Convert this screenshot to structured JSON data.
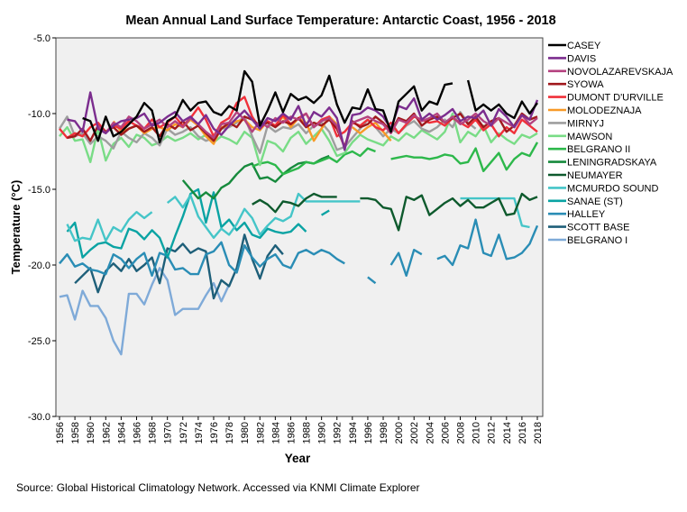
{
  "chart_data": {
    "type": "line",
    "title": "Mean Annual Land Surface Temperature: Antarctic Coast, 1956 - 2018",
    "xlabel": "Year",
    "ylabel": "Temperature (°C)",
    "xlim": [
      1956,
      2018
    ],
    "ylim": [
      -30,
      -5
    ],
    "yticks": [
      -5,
      -10,
      -15,
      -20,
      -25,
      -30
    ],
    "ytick_labels": [
      "-5.0",
      "-10.0",
      "-15.0",
      "-20.0",
      "-25.0",
      "-30.0"
    ],
    "xticks": [
      1956,
      1958,
      1960,
      1962,
      1964,
      1966,
      1968,
      1970,
      1972,
      1974,
      1976,
      1978,
      1980,
      1982,
      1984,
      1986,
      1988,
      1990,
      1992,
      1994,
      1996,
      1998,
      2000,
      2002,
      2004,
      2006,
      2008,
      2010,
      2012,
      2014,
      2016,
      2018
    ],
    "grid": false,
    "legend_position": "right",
    "series": [
      {
        "name": "CASEY",
        "color": "#000000",
        "start": 1959,
        "values": [
          -10.3,
          -10.5,
          -11.8,
          -10.2,
          -11.5,
          -11.2,
          -10.7,
          -10.2,
          -9.3,
          -9.8,
          -11.9,
          -10.5,
          -10.2,
          -9.1,
          -9.8,
          -9.3,
          -9.2,
          -9.9,
          -10.1,
          -9.5,
          -9.8,
          -7.2,
          -7.9,
          -10.8,
          -9.8,
          -8.6,
          -9.9,
          -8.7,
          -9.1,
          -8.9,
          -9.3,
          -8.8,
          -7.5,
          -9.4,
          -10.6,
          -9.6,
          -9.7,
          -8.4,
          -9.7,
          -9.8,
          -11.2,
          -9.2,
          -8.7,
          -8.2,
          -9.8,
          -9.2,
          -9.4,
          -8.1,
          -8.0,
          null,
          -7.8,
          -9.8,
          -9.4,
          -9.8,
          -9.4,
          -10.0,
          -10.3,
          -9.2,
          -10.0,
          -9.3
        ]
      },
      {
        "name": "DAVIS",
        "color": "#7b2d8e",
        "start": 1957,
        "values": [
          -10.4,
          -10.5,
          -11.2,
          -8.6,
          -11.0,
          -11.3,
          -10.8,
          -10.5,
          -10.4,
          -10.3,
          -10.0,
          -10.8,
          -10.6,
          -10.2,
          -9.9,
          -10.5,
          -10.2,
          -10.7,
          -10.1,
          -11.0,
          -11.4,
          -10.8,
          -10.3,
          -9.8,
          -10.4,
          -11.0,
          -10.3,
          -10.5,
          -10.0,
          -10.4,
          -9.5,
          -10.8,
          -9.9,
          -10.2,
          -9.6,
          -10.3,
          -12.4,
          -10.1,
          -10.0,
          -9.6,
          -9.8,
          -10.2,
          -11.0,
          -9.5,
          -9.7,
          -9.0,
          -10.4,
          -10.0,
          -10.4,
          -10.1,
          -9.7,
          -10.5,
          -10.2,
          -10.3,
          -9.8,
          -10.8,
          -9.7,
          -10.2,
          -10.9,
          -10.1,
          -10.4,
          -9.1
        ]
      },
      {
        "name": "NOVOLAZAREVSKAJA",
        "color": "#b5427f",
        "start": 1961,
        "values": [
          -10.8,
          -11.3,
          -10.6,
          -10.9,
          -10.2,
          -10.5,
          -11.0,
          -10.7,
          -10.4,
          -10.9,
          -10.5,
          -10.9,
          -10.3,
          -10.7,
          -11.2,
          -11.6,
          -10.7,
          -10.6,
          -9.9,
          -10.4,
          -11.2,
          -10.5,
          -10.9,
          -10.3,
          -10.6,
          -10.2,
          -10.4,
          -10.0,
          -10.9,
          -10.5,
          -10.3,
          -10.8,
          -12.3,
          -10.6,
          -10.4,
          -10.2,
          -10.5,
          -10.7,
          -11.3,
          -10.4,
          -10.6,
          -10.1,
          -10.5,
          -10.3,
          -10.0,
          -10.6,
          -10.2,
          -10.7,
          -10.4,
          -10.0,
          -10.5,
          -10.8,
          -10.3,
          -10.6,
          -10.9,
          -10.1,
          -10.7,
          -10.3
        ]
      },
      {
        "name": "SYOWA",
        "color": "#a0181c",
        "start": 1957,
        "values": [
          -11.6,
          -11.5,
          -11.0,
          -11.8,
          -10.8,
          -11.2,
          -10.9,
          -11.4,
          -11.0,
          -10.8,
          -11.2,
          -10.9,
          -11.5,
          -10.7,
          -11.0,
          -10.5,
          -11.1,
          -10.8,
          -11.3,
          -11.8,
          -11.0,
          -10.6,
          -10.9,
          -10.2,
          -10.4,
          -10.8,
          -10.6,
          -10.9,
          -10.5,
          -10.7,
          -10.3,
          -10.9,
          -10.6,
          -10.8,
          -10.4,
          -11.0,
          -12.2,
          -10.5,
          -10.9,
          -10.7,
          -10.2,
          -10.6,
          -11.2,
          -10.3,
          -10.5,
          -10.0,
          -10.8,
          -10.4,
          -10.2,
          -10.6,
          -10.3,
          -10.0,
          -10.7,
          -10.2,
          -10.9,
          -10.5,
          -10.3,
          -11.2,
          -10.8,
          -10.0,
          -10.4,
          -10.2
        ]
      },
      {
        "name": "DUMONT D'URVILLE",
        "color": "#f0303a",
        "start": 1956,
        "values": [
          -11.0,
          -11.6,
          -11.3,
          -11.5,
          -10.9,
          -10.6,
          -11.2,
          -10.8,
          -11.0,
          -10.5,
          -10.8,
          -11.0,
          -10.4,
          -10.9,
          -10.6,
          -10.2,
          -10.8,
          -10.3,
          -9.6,
          -10.4,
          -11.5,
          -10.6,
          -10.3,
          -9.3,
          -8.9,
          -10.2,
          -11.0,
          -10.5,
          -10.8,
          -10.1,
          -10.7,
          -10.3,
          -10.0,
          -10.9,
          -10.4,
          -10.2,
          -11.5,
          -11.2,
          -10.6,
          -10.8,
          -10.4,
          -10.9,
          -11.1,
          -10.6,
          -11.3,
          -10.7,
          -10.2,
          -10.4,
          -10.6,
          -10.5,
          -10.8,
          -10.3,
          -10.6,
          -10.9,
          -10.4,
          -11.1,
          -10.7,
          -11.5,
          -10.9,
          -11.3,
          -10.4,
          -10.8,
          -11.2
        ]
      },
      {
        "name": "MOLODEZNAJA",
        "color": "#f89a28",
        "start": 1963,
        "values": [
          -10.5,
          -11.2,
          -11.0,
          -10.8,
          -11.3,
          -11.0,
          -10.9,
          -11.1,
          -10.7,
          -10.9,
          -10.4,
          -10.8,
          -11.5,
          -12.0,
          -10.9,
          -10.8,
          -10.5,
          -10.4,
          -10.9,
          -11.1,
          -10.5,
          -10.8,
          -10.2,
          -10.9,
          -10.3,
          -10.6,
          -11.8,
          -11.0,
          -10.2,
          -10.7,
          null,
          -10.9,
          -11.3,
          -10.9,
          -10.6,
          -11.2,
          -11.8
        ]
      },
      {
        "name": "MIRNYJ",
        "color": "#9e9e9e",
        "start": 1956,
        "values": [
          -11.0,
          -10.2,
          -11.5,
          -11.3,
          -12.0,
          -11.5,
          -11.8,
          -12.3,
          -11.2,
          -11.6,
          -11.9,
          -11.3,
          -11.6,
          -12.1,
          -11.0,
          -11.4,
          -11.2,
          -10.9,
          -11.5,
          -11.8,
          -11.6,
          -11.0,
          -10.9,
          -10.6,
          -10.2,
          -11.5,
          -12.6,
          -10.8,
          -11.2,
          -10.9,
          -11.0,
          -10.7,
          -11.3,
          -10.8,
          -10.6,
          -11.2,
          -12.4,
          -12.2,
          -11.6,
          -11.0,
          -10.4,
          -10.9,
          -11.5,
          -11.0,
          -11.3,
          -10.8,
          -10.5,
          -11.0,
          -11.2,
          -10.9,
          -10.4,
          -10.9,
          -9.9,
          -10.6,
          -11.0
        ]
      },
      {
        "name": "MAWSON",
        "color": "#79dc86",
        "start": 1956,
        "values": [
          -11.5,
          -10.9,
          -11.8,
          -11.7,
          -13.2,
          -11.0,
          -13.1,
          -12.0,
          -11.6,
          -12.2,
          -11.4,
          -11.6,
          -12.1,
          -11.9,
          -11.5,
          -11.8,
          -11.6,
          -11.3,
          -11.7,
          -11.4,
          -11.9,
          -11.5,
          -11.7,
          -12.0,
          -11.2,
          -11.6,
          -13.4,
          -11.8,
          -12.0,
          -12.5,
          -11.6,
          -11.2,
          -12.0,
          -11.5,
          -11.0,
          -11.8,
          -12.8,
          -12.6,
          -11.9,
          -11.4,
          -11.7,
          -11.9,
          -12.1,
          -11.5,
          -11.8,
          -11.3,
          -11.6,
          -11.1,
          -11.4,
          -11.7,
          -11.2,
          -10.0,
          -11.9,
          -11.2,
          -11.5,
          -10.8,
          -11.9,
          -11.3,
          -11.7,
          -12.0,
          -11.4,
          -11.6,
          -11.3
        ]
      },
      {
        "name": "BELGRANO II",
        "color": "#2db84b",
        "start": 1981,
        "values": [
          -13.5,
          -13.3,
          -13.2,
          -13.4,
          -14.0,
          -13.8,
          -13.6,
          -13.2,
          -13.3,
          -13.1,
          -12.9,
          -13.2,
          -12.7,
          -12.5,
          -12.8,
          -12.3,
          -12.5,
          null,
          -13.0,
          -12.9,
          -12.8,
          -12.9,
          -12.9,
          -13.0,
          -12.9,
          -12.7,
          -12.8,
          -13.3,
          -13.2,
          -12.3,
          -13.8,
          -13.2,
          -12.6,
          -13.7,
          -13.0,
          -12.6,
          -12.8,
          -11.9
        ]
      },
      {
        "name": "LENINGRADSKAYA",
        "color": "#178a3d",
        "start": 1972,
        "values": [
          -14.4,
          -15.0,
          -15.6,
          -15.2,
          -15.6,
          -14.9,
          -14.6,
          -14.0,
          -13.5,
          -13.3,
          -14.3,
          -14.2,
          -14.5,
          -14.0,
          -13.6,
          -13.3,
          -13.2,
          -13.3,
          -13.0,
          -12.8
        ]
      },
      {
        "name": "NEUMAYER",
        "color": "#0e5a2d",
        "start": 1981,
        "values": [
          -16.0,
          -15.7,
          -16.0,
          -16.5,
          -15.8,
          -15.9,
          -16.1,
          -15.6,
          -15.3,
          -15.5,
          -15.5,
          -15.5,
          null,
          null,
          -15.6,
          -15.6,
          -15.7,
          -16.2,
          -16.3,
          -17.7,
          -15.5,
          -15.7,
          -15.4,
          -16.7,
          -16.3,
          -15.9,
          -15.6,
          -16.1,
          -15.7,
          -16.2,
          -16.2,
          -15.9,
          -15.6,
          -16.7,
          -16.6,
          -15.3,
          -15.7,
          -15.5
        ]
      },
      {
        "name": "MCMURDO SOUND",
        "color": "#45c5c8",
        "start": 1957,
        "values": [
          -17.3,
          -18.4,
          -18.2,
          -18.3,
          -17.0,
          -18.4,
          -17.5,
          -17.8,
          -17.0,
          -16.5,
          -16.9,
          -16.5,
          null,
          -15.9,
          -15.5,
          -16.2,
          -15.4,
          -16.8,
          -17.5,
          -18.2,
          -17.6,
          -18.0,
          -17.3,
          -16.3,
          -16.9,
          -18.0,
          -17.4,
          -16.9,
          -17.1,
          -16.8,
          -15.3,
          -15.8,
          -15.8,
          -15.8,
          -15.8,
          -15.8,
          -15.8,
          -15.8,
          -15.8,
          null,
          null,
          null,
          null,
          null,
          null,
          null,
          null,
          null,
          null,
          null,
          null,
          -15.6,
          -15.6,
          -15.6,
          -15.6,
          -15.6,
          -15.6,
          -15.6,
          -15.6,
          -17.4,
          -17.5,
          null
        ]
      },
      {
        "name": "SANAE (ST)",
        "color": "#0aa3a3",
        "start": 1957,
        "values": [
          -17.8,
          -17.2,
          -19.5,
          -19.0,
          -18.6,
          -18.5,
          -18.8,
          -18.9,
          -17.6,
          -17.8,
          -18.3,
          -17.7,
          -18.2,
          -19.5,
          -18.1,
          -16.8,
          -15.3,
          -15.0,
          -17.2,
          -15.2,
          -17.5,
          -17.0,
          -17.7,
          -17.2,
          -18.0,
          -18.2,
          -17.6,
          -17.8,
          -17.9,
          -17.8,
          -17.3,
          -17.8,
          null,
          -16.7,
          -16.4
        ]
      },
      {
        "name": "HALLEY",
        "color": "#2a8db5",
        "start": 1956,
        "values": [
          -19.9,
          -19.3,
          -20.1,
          -19.9,
          -20.3,
          -20.4,
          -20.6,
          -19.3,
          -19.6,
          -20.2,
          -19.6,
          -19.2,
          -20.7,
          -19.2,
          -19.4,
          -20.3,
          -20.2,
          -20.6,
          -20.6,
          -19.3,
          -19.1,
          -18.5,
          -20.0,
          -20.5,
          -18.7,
          -19.5,
          -20.1,
          -19.6,
          -19.3,
          -20.0,
          -20.2,
          -19.2,
          -19.0,
          -19.3,
          -19.0,
          -19.2,
          -19.6,
          -19.9,
          null,
          null,
          -20.8,
          -21.2,
          null,
          -20.0,
          -19.2,
          -20.7,
          -19.0,
          -19.3,
          null,
          -19.6,
          -19.4,
          -20.0,
          -18.7,
          -18.9,
          -17.0,
          -19.2,
          -19.4,
          -18.0,
          -19.6,
          -19.5,
          -19.2,
          -18.6,
          -17.4
        ]
      },
      {
        "name": "SCOTT BASE",
        "color": "#1e5f79",
        "start": 1958,
        "values": [
          -21.2,
          -20.7,
          -20.2,
          -21.8,
          -20.4,
          -19.9,
          -20.4,
          -19.6,
          -20.4,
          -20.0,
          -19.5,
          -21.2,
          -18.9,
          -19.1,
          -18.6,
          -19.2,
          -18.9,
          -19.1,
          -22.2,
          -21.0,
          -21.4,
          -20.2,
          -18.0,
          -19.6,
          -20.9,
          -19.4,
          -18.7,
          -19.3
        ]
      },
      {
        "name": "BELGRANO I",
        "color": "#7faad8",
        "start": 1956,
        "values": [
          -22.1,
          -22.0,
          -23.6,
          -21.7,
          -22.7,
          -22.7,
          -23.5,
          -25.0,
          -25.9,
          -21.9,
          -21.9,
          -22.6,
          -21.3,
          -20.2,
          -21.0,
          -23.3,
          -22.9,
          -22.9,
          -22.9,
          -22.0,
          -21.2,
          -22.4,
          -21.3
        ]
      }
    ]
  },
  "source": "Source: Global Historical Climatology Network. Accessed via KNMI Climate Explorer"
}
